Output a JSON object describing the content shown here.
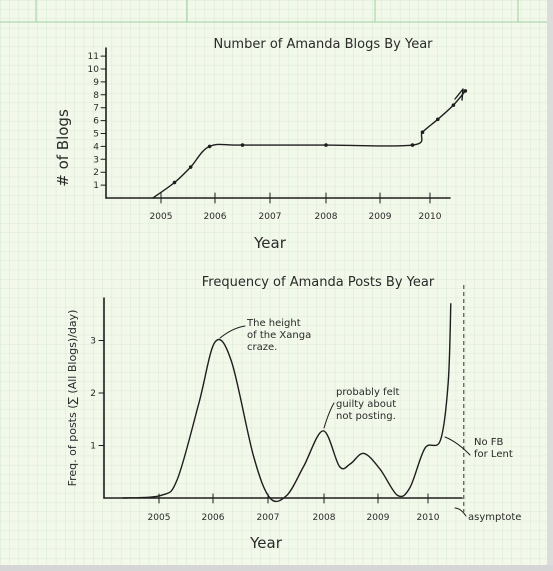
{
  "chart_data": [
    {
      "type": "line",
      "title": "Number of Amanda Blogs By Year",
      "xlabel": "Year",
      "ylabel": "# of Blogs",
      "xlim": [
        2004.2,
        2011.1
      ],
      "ylim": [
        0,
        11.5
      ],
      "xticks": [
        "2005",
        "2006",
        "2007",
        "2008",
        "2009",
        "2010"
      ],
      "yticks": [
        "1",
        "2",
        "3",
        "4",
        "5",
        "6",
        "7",
        "8",
        "9",
        "10",
        "11"
      ],
      "series": [
        {
          "points": [
            {
              "x": 2004.85,
              "y": 0
            },
            {
              "x": 2005.25,
              "y": 1.2
            },
            {
              "x": 2005.55,
              "y": 2.4
            },
            {
              "x": 2005.9,
              "y": 4.0
            },
            {
              "x": 2006.5,
              "y": 4.1
            },
            {
              "x": 2008.0,
              "y": 4.1
            },
            {
              "x": 2009.65,
              "y": 4.1
            },
            {
              "x": 2009.85,
              "y": 5.1
            },
            {
              "x": 2010.15,
              "y": 6.1
            },
            {
              "x": 2010.45,
              "y": 7.2
            },
            {
              "x": 2010.68,
              "y": 8.3
            }
          ]
        }
      ]
    },
    {
      "type": "line",
      "title": "Frequency of Amanda Posts By Year",
      "xlabel": "Year",
      "ylabel": "Freq. of posts (∑ (All Blogs)/day)",
      "xlim": [
        2004.2,
        2011.1
      ],
      "ylim": [
        0,
        3.7
      ],
      "xticks": [
        "2005",
        "2006",
        "2007",
        "2008",
        "2009",
        "2010"
      ],
      "yticks": [
        "1",
        "2",
        "3"
      ],
      "series": [
        {
          "points": [
            {
              "x": 2004.3,
              "y": 0.0
            },
            {
              "x": 2005.0,
              "y": 0.05
            },
            {
              "x": 2005.3,
              "y": 0.35
            },
            {
              "x": 2005.7,
              "y": 1.8
            },
            {
              "x": 2006.0,
              "y": 2.97
            },
            {
              "x": 2006.3,
              "y": 2.6
            },
            {
              "x": 2006.7,
              "y": 0.8
            },
            {
              "x": 2007.0,
              "y": 0.0
            },
            {
              "x": 2007.3,
              "y": 0.05
            },
            {
              "x": 2007.6,
              "y": 0.6
            },
            {
              "x": 2007.95,
              "y": 1.28
            },
            {
              "x": 2008.25,
              "y": 0.6
            },
            {
              "x": 2008.45,
              "y": 0.65
            },
            {
              "x": 2008.7,
              "y": 0.85
            },
            {
              "x": 2009.0,
              "y": 0.55
            },
            {
              "x": 2009.35,
              "y": 0.05
            },
            {
              "x": 2009.6,
              "y": 0.2
            },
            {
              "x": 2009.9,
              "y": 0.95
            },
            {
              "x": 2010.2,
              "y": 1.1
            },
            {
              "x": 2010.35,
              "y": 2.2
            },
            {
              "x": 2010.4,
              "y": 3.7
            }
          ]
        }
      ],
      "asymptote_x": 2010.65,
      "annotations": [
        {
          "text": [
            "The height",
            "of the Xanga",
            "craze."
          ],
          "x": 2006.0,
          "y": 2.97
        },
        {
          "text": [
            "probably felt",
            "guilty about",
            "not posting."
          ],
          "x": 2007.95,
          "y": 1.28
        },
        {
          "text": [
            "No FB",
            "for Lent"
          ],
          "x": 2010.35,
          "y": 1.2
        },
        {
          "text": [
            "asymptote"
          ],
          "x": 2010.65,
          "y": 0
        }
      ]
    }
  ]
}
